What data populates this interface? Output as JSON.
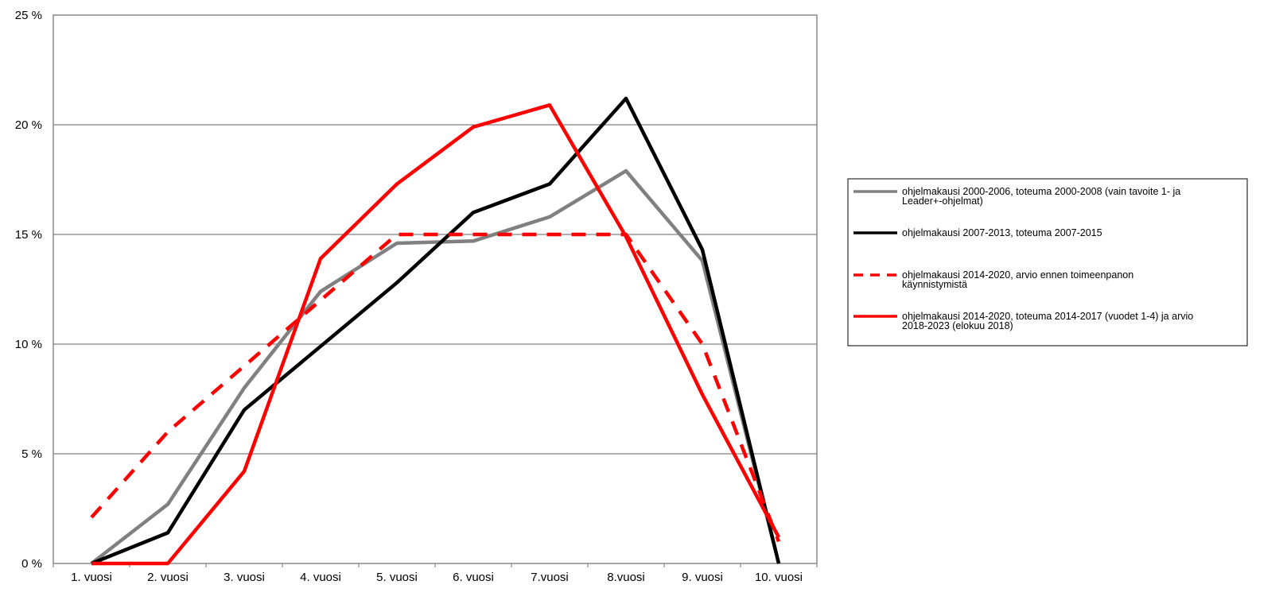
{
  "chart_data": {
    "type": "line",
    "title": "",
    "xlabel": "",
    "ylabel": "",
    "categories": [
      "1. vuosi",
      "2. vuosi",
      "3. vuosi",
      "4. vuosi",
      "5. vuosi",
      "6. vuosi",
      "7.vuosi",
      "8.vuosi",
      "9. vuosi",
      "10. vuosi"
    ],
    "ylim": [
      0,
      25
    ],
    "y_ticks": [
      {
        "value": 0,
        "label": "0 %"
      },
      {
        "value": 5,
        "label": "5 %"
      },
      {
        "value": 10,
        "label": "10 %"
      },
      {
        "value": 15,
        "label": "15 %"
      },
      {
        "value": 20,
        "label": "20 %"
      },
      {
        "value": 25,
        "label": "25 %"
      }
    ],
    "grid": true,
    "legend_position": "right",
    "series": [
      {
        "name": "ohjelmakausi 2000-2006, toteuma 2000-2008 (vain tavoite 1- ja Leader+-ohjelmat)",
        "legend_lines": [
          "ohjelmakausi 2000-2006, toteuma 2000-2008 (vain tavoite 1- ja",
          "Leader+-ohjelmat)"
        ],
        "color": "#808080",
        "dashed": false,
        "values": [
          0,
          2.7,
          8.0,
          12.4,
          14.6,
          14.7,
          15.8,
          17.9,
          13.8,
          0
        ]
      },
      {
        "name": "ohjelmakausi 2007-2013, toteuma 2007-2015",
        "legend_lines": [
          "ohjelmakausi 2007-2013, toteuma 2007-2015"
        ],
        "color": "#000000",
        "dashed": false,
        "values": [
          0,
          1.4,
          7.0,
          9.9,
          12.8,
          16.0,
          17.3,
          21.2,
          14.3,
          0
        ]
      },
      {
        "name": "ohjelmakausi 2014-2020, arvio ennen toimeenpanon käynnistymistä",
        "legend_lines": [
          "ohjelmakausi 2014-2020, arvio ennen toimeenpanon",
          "käynnistymistä"
        ],
        "color": "#ff0000",
        "dashed": true,
        "values": [
          2.1,
          6.0,
          9.0,
          12.0,
          15.0,
          15.0,
          15.0,
          15.0,
          10.0,
          1.0
        ]
      },
      {
        "name": "ohjelmakausi 2014-2020, toteuma 2014-2017 (vuodet 1-4) ja arvio 2018-2023 (elokuu 2018)",
        "legend_lines": [
          "ohjelmakausi 2014-2020, toteuma 2014-2017 (vuodet 1-4) ja arvio",
          "2018-2023 (elokuu 2018)"
        ],
        "color": "#ff0000",
        "dashed": false,
        "values": [
          0,
          0,
          4.2,
          13.9,
          17.3,
          19.9,
          20.9,
          14.9,
          7.7,
          1.2
        ]
      }
    ]
  }
}
